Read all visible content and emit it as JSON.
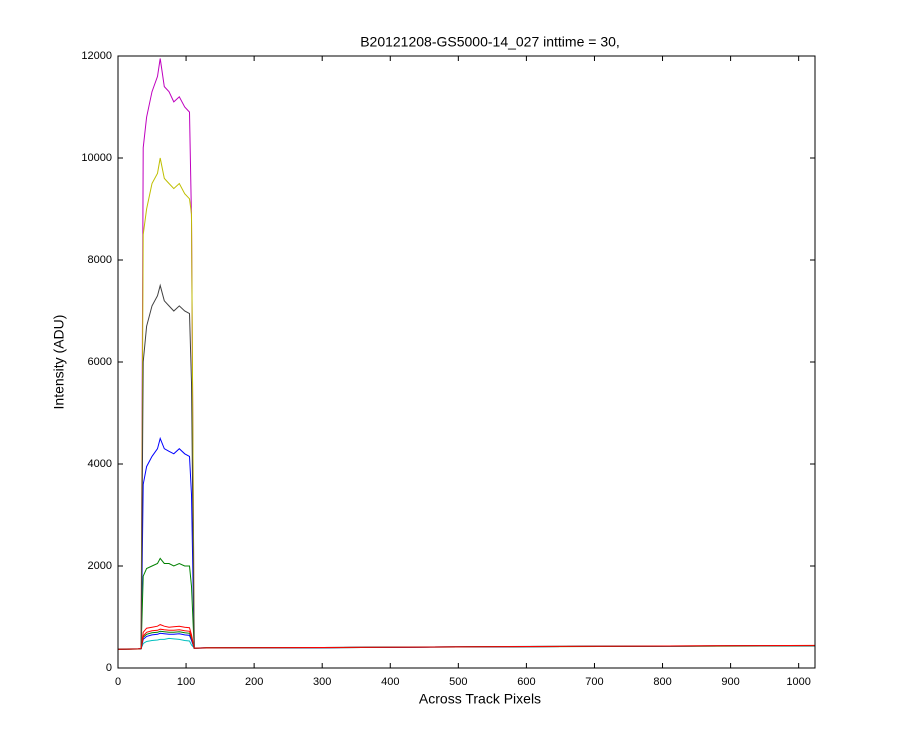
{
  "chart_data": {
    "type": "line",
    "title": "B20121208-GS5000-14_027 inttime = 30,",
    "x_label": "Across Track Pixels",
    "y_label": "Intensity (ADU)",
    "xlim": [
      0,
      1024
    ],
    "ylim": [
      0,
      12000
    ],
    "xticks": [
      0,
      100,
      200,
      300,
      400,
      500,
      600,
      700,
      800,
      900,
      1000
    ],
    "yticks": [
      0,
      2000,
      4000,
      6000,
      8000,
      10000,
      12000
    ],
    "x": [
      0,
      30,
      34,
      37,
      42,
      50,
      58,
      62,
      68,
      75,
      82,
      90,
      98,
      105,
      108,
      112,
      130,
      300,
      600,
      1024
    ],
    "series": [
      {
        "color": "#0000ff",
        "values": [
          370,
          375,
          380,
          3600,
          3950,
          4150,
          4300,
          4500,
          4300,
          4250,
          4200,
          4300,
          4200,
          4150,
          3400,
          390,
          395,
          400,
          420,
          440
        ]
      },
      {
        "color": "#008000",
        "values": [
          365,
          372,
          378,
          1800,
          1950,
          2000,
          2050,
          2150,
          2050,
          2050,
          2000,
          2050,
          2000,
          2000,
          1600,
          388,
          392,
          398,
          418,
          436
        ]
      },
      {
        "color": "#ff0000",
        "values": [
          368,
          374,
          380,
          700,
          780,
          800,
          820,
          850,
          820,
          800,
          810,
          820,
          800,
          790,
          650,
          390,
          394,
          400,
          422,
          442
        ]
      },
      {
        "color": "#00bfbf",
        "values": [
          372,
          376,
          382,
          480,
          520,
          540,
          550,
          560,
          560,
          580,
          570,
          560,
          540,
          530,
          450,
          392,
          396,
          402,
          424,
          438
        ]
      },
      {
        "color": "#bf00bf",
        "values": [
          370,
          375,
          380,
          10200,
          10800,
          11300,
          11600,
          11950,
          11400,
          11300,
          11100,
          11200,
          11000,
          10900,
          8800,
          390,
          395,
          400,
          420,
          440
        ]
      },
      {
        "color": "#bfbf00",
        "values": [
          369,
          374,
          379,
          8500,
          9000,
          9500,
          9700,
          10000,
          9600,
          9500,
          9400,
          9500,
          9300,
          9200,
          8900,
          389,
          394,
          399,
          419,
          439
        ]
      },
      {
        "color": "#404040",
        "values": [
          371,
          376,
          381,
          6000,
          6700,
          7100,
          7300,
          7500,
          7200,
          7100,
          7000,
          7100,
          7000,
          6950,
          5600,
          391,
          396,
          401,
          421,
          441
        ]
      },
      {
        "color": "#0000ff",
        "values": [
          367,
          373,
          379,
          560,
          620,
          650,
          660,
          680,
          670,
          660,
          660,
          670,
          650,
          640,
          540,
          388,
          393,
          399,
          419,
          437
        ]
      },
      {
        "color": "#008000",
        "values": [
          366,
          372,
          378,
          600,
          660,
          690,
          700,
          720,
          710,
          700,
          700,
          710,
          690,
          680,
          580,
          389,
          394,
          400,
          420,
          438
        ]
      },
      {
        "color": "#ff0000",
        "values": [
          369,
          375,
          381,
          630,
          700,
          730,
          740,
          760,
          750,
          740,
          740,
          750,
          730,
          720,
          610,
          391,
          395,
          401,
          421,
          443
        ]
      }
    ]
  }
}
